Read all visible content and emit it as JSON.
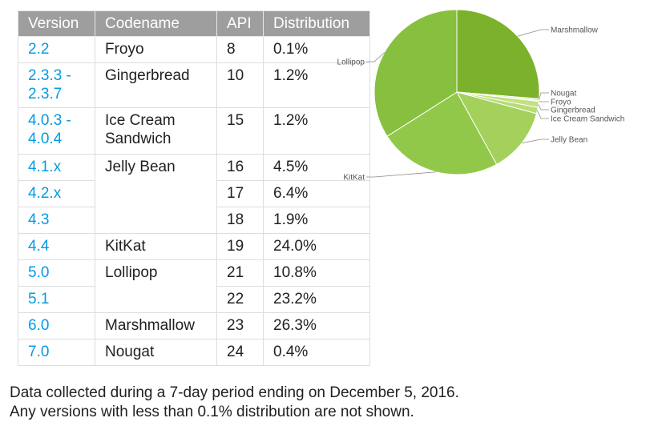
{
  "table": {
    "headers": [
      "Version",
      "Codename",
      "API",
      "Distribution"
    ],
    "rows": [
      {
        "version": "2.2",
        "codename": "Froyo",
        "api": "8",
        "distribution": "0.1%"
      },
      {
        "version": "2.3.3 -\n2.3.7",
        "codename": "Gingerbread",
        "api": "10",
        "distribution": "1.2%"
      },
      {
        "version": "4.0.3 -\n4.0.4",
        "codename": "Ice Cream\nSandwich",
        "api": "15",
        "distribution": "1.2%"
      },
      {
        "version": "4.1.x",
        "codename": "Jelly Bean",
        "api": "16",
        "distribution": "4.5%"
      },
      {
        "version": "4.2.x",
        "codename": "",
        "api": "17",
        "distribution": "6.4%"
      },
      {
        "version": "4.3",
        "codename": "",
        "api": "18",
        "distribution": "1.9%"
      },
      {
        "version": "4.4",
        "codename": "KitKat",
        "api": "19",
        "distribution": "24.0%"
      },
      {
        "version": "5.0",
        "codename": "Lollipop",
        "api": "21",
        "distribution": "10.8%"
      },
      {
        "version": "5.1",
        "codename": "",
        "api": "22",
        "distribution": "23.2%"
      },
      {
        "version": "6.0",
        "codename": "Marshmallow",
        "api": "23",
        "distribution": "26.3%"
      },
      {
        "version": "7.0",
        "codename": "Nougat",
        "api": "24",
        "distribution": "0.4%"
      }
    ]
  },
  "notes": {
    "line1": "Data collected during a 7-day period ending on December 5, 2016.",
    "line2": "Any versions with less than 0.1% distribution are not shown."
  },
  "chart_data": {
    "type": "pie",
    "title": "",
    "labels": [
      "Marshmallow",
      "Nougat",
      "Froyo",
      "Gingerbread",
      "Ice Cream Sandwich",
      "Jelly Bean",
      "KitKat",
      "Lollipop"
    ],
    "values": [
      26.3,
      0.4,
      0.1,
      1.2,
      1.2,
      12.8,
      24.0,
      34.0
    ],
    "colors": [
      "#7cb22b",
      "#ddeeb8",
      "#cfe79a",
      "#c2e180",
      "#b7dc73",
      "#a3d15c",
      "#92c84a",
      "#86c03e"
    ],
    "label_color": "#555555",
    "line_color": "#8a8a8a"
  },
  "colors": {
    "header_bg": "#9e9e9e",
    "version_link": "#039be5",
    "grid": "#dddddd"
  }
}
